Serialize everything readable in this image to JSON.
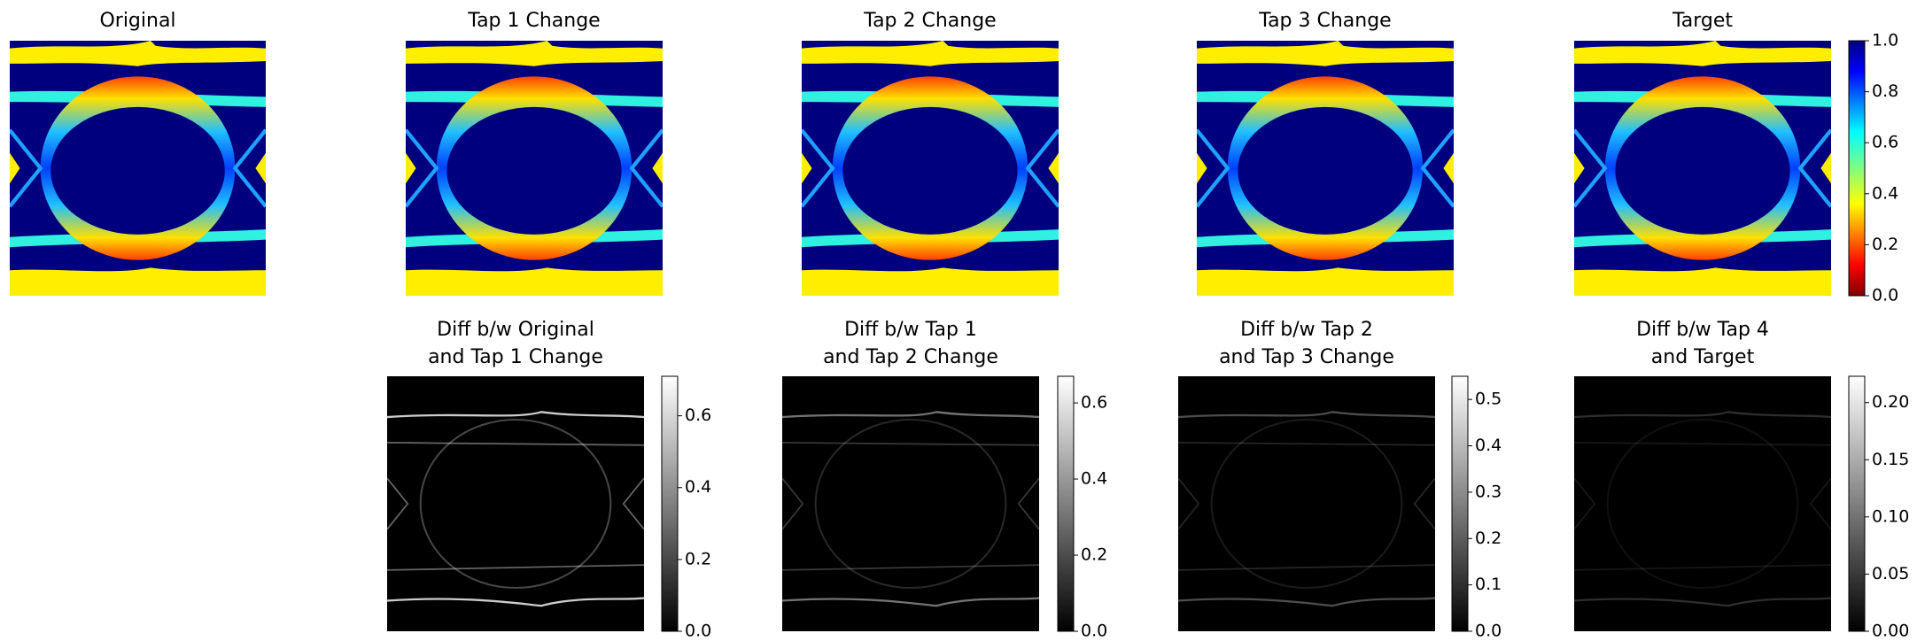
{
  "chart_data": [
    {
      "type": "image",
      "title": "Original",
      "colormap": "jet"
    },
    {
      "type": "image",
      "title": "Tap 1 Change",
      "colormap": "jet"
    },
    {
      "type": "image",
      "title": "Tap 2 Change",
      "colormap": "jet"
    },
    {
      "type": "image",
      "title": "Tap 3 Change",
      "colormap": "jet"
    },
    {
      "type": "image",
      "title": "Target",
      "colormap": "jet",
      "ylim": [
        0,
        1
      ],
      "yticks": [
        {
          "value": 0,
          "label": "0.0"
        },
        0.2,
        0.4,
        0.6,
        0.8,
        {
          "value": 1,
          "label": "1.0"
        }
      ]
    },
    {
      "type": "image",
      "title": "Diff b/w Original\nand Tap 1 Change",
      "colormap": "gray",
      "ylim": [
        0,
        0.71
      ],
      "yticks": [
        {
          "value": 0,
          "label": "0.0"
        },
        0.2,
        0.4,
        0.6
      ]
    },
    {
      "type": "image",
      "title": "Diff b/w Tap 1\nand Tap 2 Change",
      "colormap": "gray",
      "ylim": [
        0,
        0.67
      ],
      "yticks": [
        {
          "value": 0,
          "label": "0.0"
        },
        0.2,
        0.4,
        0.6
      ]
    },
    {
      "type": "image",
      "title": "Diff b/w Tap 2\nand Tap 3 Change",
      "colormap": "gray",
      "ylim": [
        0,
        0.55
      ],
      "yticks": [
        {
          "value": 0,
          "label": "0.0"
        },
        0.1,
        0.2,
        0.3,
        0.4,
        0.5
      ]
    },
    {
      "type": "image",
      "title": "Diff b/w Tap 4\nand Target",
      "colormap": "gray",
      "ylim": [
        0,
        0.223
      ],
      "yticks": [
        {
          "value": 0,
          "label": "0.00"
        },
        0.05,
        {
          "value": 0.1,
          "label": "0.10"
        },
        0.15,
        {
          "value": 0.2,
          "label": "0.20"
        }
      ]
    }
  ]
}
